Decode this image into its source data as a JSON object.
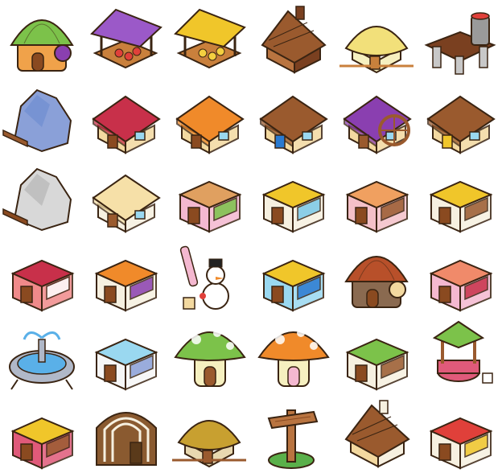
{
  "sheet": {
    "columns": 6,
    "rows": 6,
    "background": "#ffffff",
    "sprites": [
      {
        "name": "striped-dome-house-icon",
        "kind": "dome",
        "roof": "#7cc24a",
        "wall": "#f0a24a",
        "accent": "#8a3fb0"
      },
      {
        "name": "purple-fruit-market-stall-icon",
        "kind": "stall",
        "roof": "#9b59c8",
        "wall": "#c9803c",
        "accent": "#e0403a"
      },
      {
        "name": "yellow-grain-market-stall-icon",
        "kind": "stall",
        "roof": "#f0c62a",
        "wall": "#c9803c",
        "accent": "#f4d040"
      },
      {
        "name": "log-cabin-icon",
        "kind": "cabin",
        "roof": "#9a5a2e",
        "wall": "#b97440",
        "accent": "#7a4020"
      },
      {
        "name": "thatched-farm-hut-icon",
        "kind": "hut",
        "roof": "#f2e07a",
        "wall": "#f6f0c0",
        "accent": "#c9803c"
      },
      {
        "name": "water-tower-platform-icon",
        "kind": "tower",
        "roof": "#7a4020",
        "wall": "#c8c8c8",
        "accent": "#e0403a"
      },
      {
        "name": "rock-quarry-dock-icon",
        "kind": "rock",
        "roof": "#6a8ad0",
        "wall": "#8aa0d8",
        "accent": "#9a5a2e"
      },
      {
        "name": "red-roof-barn-icon",
        "kind": "house",
        "roof": "#c8304a",
        "wall": "#f3d9a0",
        "accent": "#8a4a20"
      },
      {
        "name": "orange-shingle-cottage-icon",
        "kind": "house",
        "roof": "#f08a2a",
        "wall": "#f3d9a0",
        "accent": "#8a4a20"
      },
      {
        "name": "fishing-hut-icon",
        "kind": "house",
        "roof": "#9a5a2e",
        "wall": "#f3d9a0",
        "accent": "#2a7ad0"
      },
      {
        "name": "watermill-icon",
        "kind": "mill",
        "roof": "#8a3fb0",
        "wall": "#f3d9a0",
        "accent": "#9a5a2e"
      },
      {
        "name": "wooden-tavern-icon",
        "kind": "house",
        "roof": "#9a5a2e",
        "wall": "#f3d9a0",
        "accent": "#f0c62a"
      },
      {
        "name": "stone-mine-icon",
        "kind": "rock",
        "roof": "#b0b0b0",
        "wall": "#d8d8d8",
        "accent": "#8a4a20"
      },
      {
        "name": "barrel-storehouse-icon",
        "kind": "house",
        "roof": "#f6e0a8",
        "wall": "#f6f0e0",
        "accent": "#9a5a2e"
      },
      {
        "name": "sandwich-shop-icon",
        "kind": "shop",
        "roof": "#e0a060",
        "wall": "#f4b8d0",
        "accent": "#7cc24a"
      },
      {
        "name": "glass-display-shop-icon",
        "kind": "shop",
        "roof": "#f0c62a",
        "wall": "#f6f0e0",
        "accent": "#7ac8e8"
      },
      {
        "name": "octopus-sign-restaurant-icon",
        "kind": "shop",
        "roof": "#f0a060",
        "wall": "#f4c0c8",
        "accent": "#9a5a2e"
      },
      {
        "name": "yellow-awning-kiosk-icon",
        "kind": "shop",
        "roof": "#f0c62a",
        "wall": "#f6f0e0",
        "accent": "#9a5a2e"
      },
      {
        "name": "dice-casino-icon",
        "kind": "shop",
        "roof": "#c8304a",
        "wall": "#f08a8a",
        "accent": "#ffffff"
      },
      {
        "name": "fashion-boutique-icon",
        "kind": "shop",
        "roof": "#f08a2a",
        "wall": "#f6f0e0",
        "accent": "#8a3fb0"
      },
      {
        "name": "snowman-ski-shop-icon",
        "kind": "snowman",
        "roof": "#ffffff",
        "wall": "#f4b8d0",
        "accent": "#e0403a"
      },
      {
        "name": "aquarium-fish-shop-icon",
        "kind": "shop",
        "roof": "#f0c62a",
        "wall": "#9ad8f0",
        "accent": "#2a7ad0"
      },
      {
        "name": "acorn-hut-icon",
        "kind": "dome",
        "roof": "#b8502a",
        "wall": "#8a6a50",
        "accent": "#f3d9a0"
      },
      {
        "name": "cosmetics-perfume-shop-icon",
        "kind": "shop",
        "roof": "#f08a6a",
        "wall": "#f4b8d0",
        "accent": "#c8304a"
      },
      {
        "name": "plaza-fountain-icon",
        "kind": "fountain",
        "roof": "#5ab0e8",
        "wall": "#b0b8c8",
        "accent": "#ffffff"
      },
      {
        "name": "laundromat-icon",
        "kind": "shop",
        "roof": "#9ad8f0",
        "wall": "#f6f6f6",
        "accent": "#8aa0d8"
      },
      {
        "name": "green-mushroom-house-icon",
        "kind": "mushroom",
        "roof": "#7cc24a",
        "wall": "#f6f0c0",
        "accent": "#9a5a2e"
      },
      {
        "name": "orange-mushroom-house-icon",
        "kind": "mushroom",
        "roof": "#f08a2a",
        "wall": "#f6f0c0",
        "accent": "#f4b8d0"
      },
      {
        "name": "green-awning-grocery-icon",
        "kind": "shop",
        "roof": "#7cc24a",
        "wall": "#f6f0e0",
        "accent": "#9a5a2e"
      },
      {
        "name": "wishing-well-icon",
        "kind": "well",
        "roof": "#7cc24a",
        "wall": "#e05a7a",
        "accent": "#9a5a2e"
      },
      {
        "name": "colorful-toy-shop-icon",
        "kind": "shop",
        "roof": "#f0c62a",
        "wall": "#e05a7a",
        "accent": "#9a5a2e"
      },
      {
        "name": "wooden-barrel-shed-icon",
        "kind": "barrel",
        "roof": "#f6f0e0",
        "wall": "#8a5a30",
        "accent": "#5a3a1a"
      },
      {
        "name": "thatched-stone-house-icon",
        "kind": "hut",
        "roof": "#c8a030",
        "wall": "#e8d8b0",
        "accent": "#9a5a2e"
      },
      {
        "name": "wooden-signpost-icon",
        "kind": "sign",
        "roof": "#b97440",
        "wall": "#5ab04a",
        "accent": "#8a4a20"
      },
      {
        "name": "noodle-stall-cluster-icon",
        "kind": "cabin",
        "roof": "#9a5a2e",
        "wall": "#f3d9a0",
        "accent": "#f6f0e0"
      },
      {
        "name": "ramen-bowl-restaurant-icon",
        "kind": "shop",
        "roof": "#e0403a",
        "wall": "#f6f0e0",
        "accent": "#f0c62a"
      }
    ]
  }
}
